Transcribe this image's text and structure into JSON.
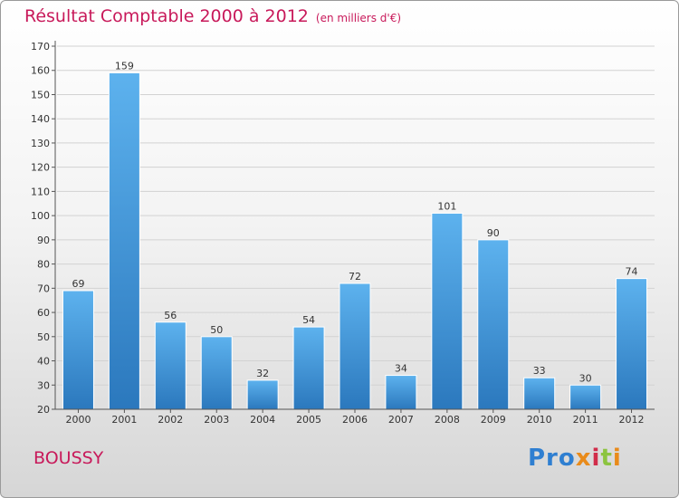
{
  "header": {
    "title": "Résultat Comptable 2000 à 2012",
    "subtitle": "(en milliers d'€)"
  },
  "place": "BOUSSY",
  "logo": {
    "part1": "Pro",
    "part2": "x",
    "part3": "i",
    "part4": "t",
    "part5": "i"
  },
  "colors": {
    "title": "#c8195a",
    "bar_light": "#5aaeea",
    "bar_dark": "#2f7fc4",
    "grid": "#cfcfcf"
  },
  "chart_data": {
    "type": "bar",
    "title": "Résultat Comptable 2000 à 2012",
    "ylabel": "en milliers d'€",
    "xlabel": "",
    "categories": [
      "2000",
      "2001",
      "2002",
      "2003",
      "2004",
      "2005",
      "2006",
      "2007",
      "2008",
      "2009",
      "2010",
      "2011",
      "2012"
    ],
    "values": [
      69,
      159,
      56,
      50,
      32,
      54,
      72,
      34,
      101,
      90,
      33,
      30,
      74
    ],
    "ylim": [
      20,
      170
    ],
    "yticks": [
      20,
      30,
      40,
      50,
      60,
      70,
      80,
      90,
      100,
      110,
      120,
      130,
      140,
      150,
      160,
      170
    ],
    "grid": true
  }
}
